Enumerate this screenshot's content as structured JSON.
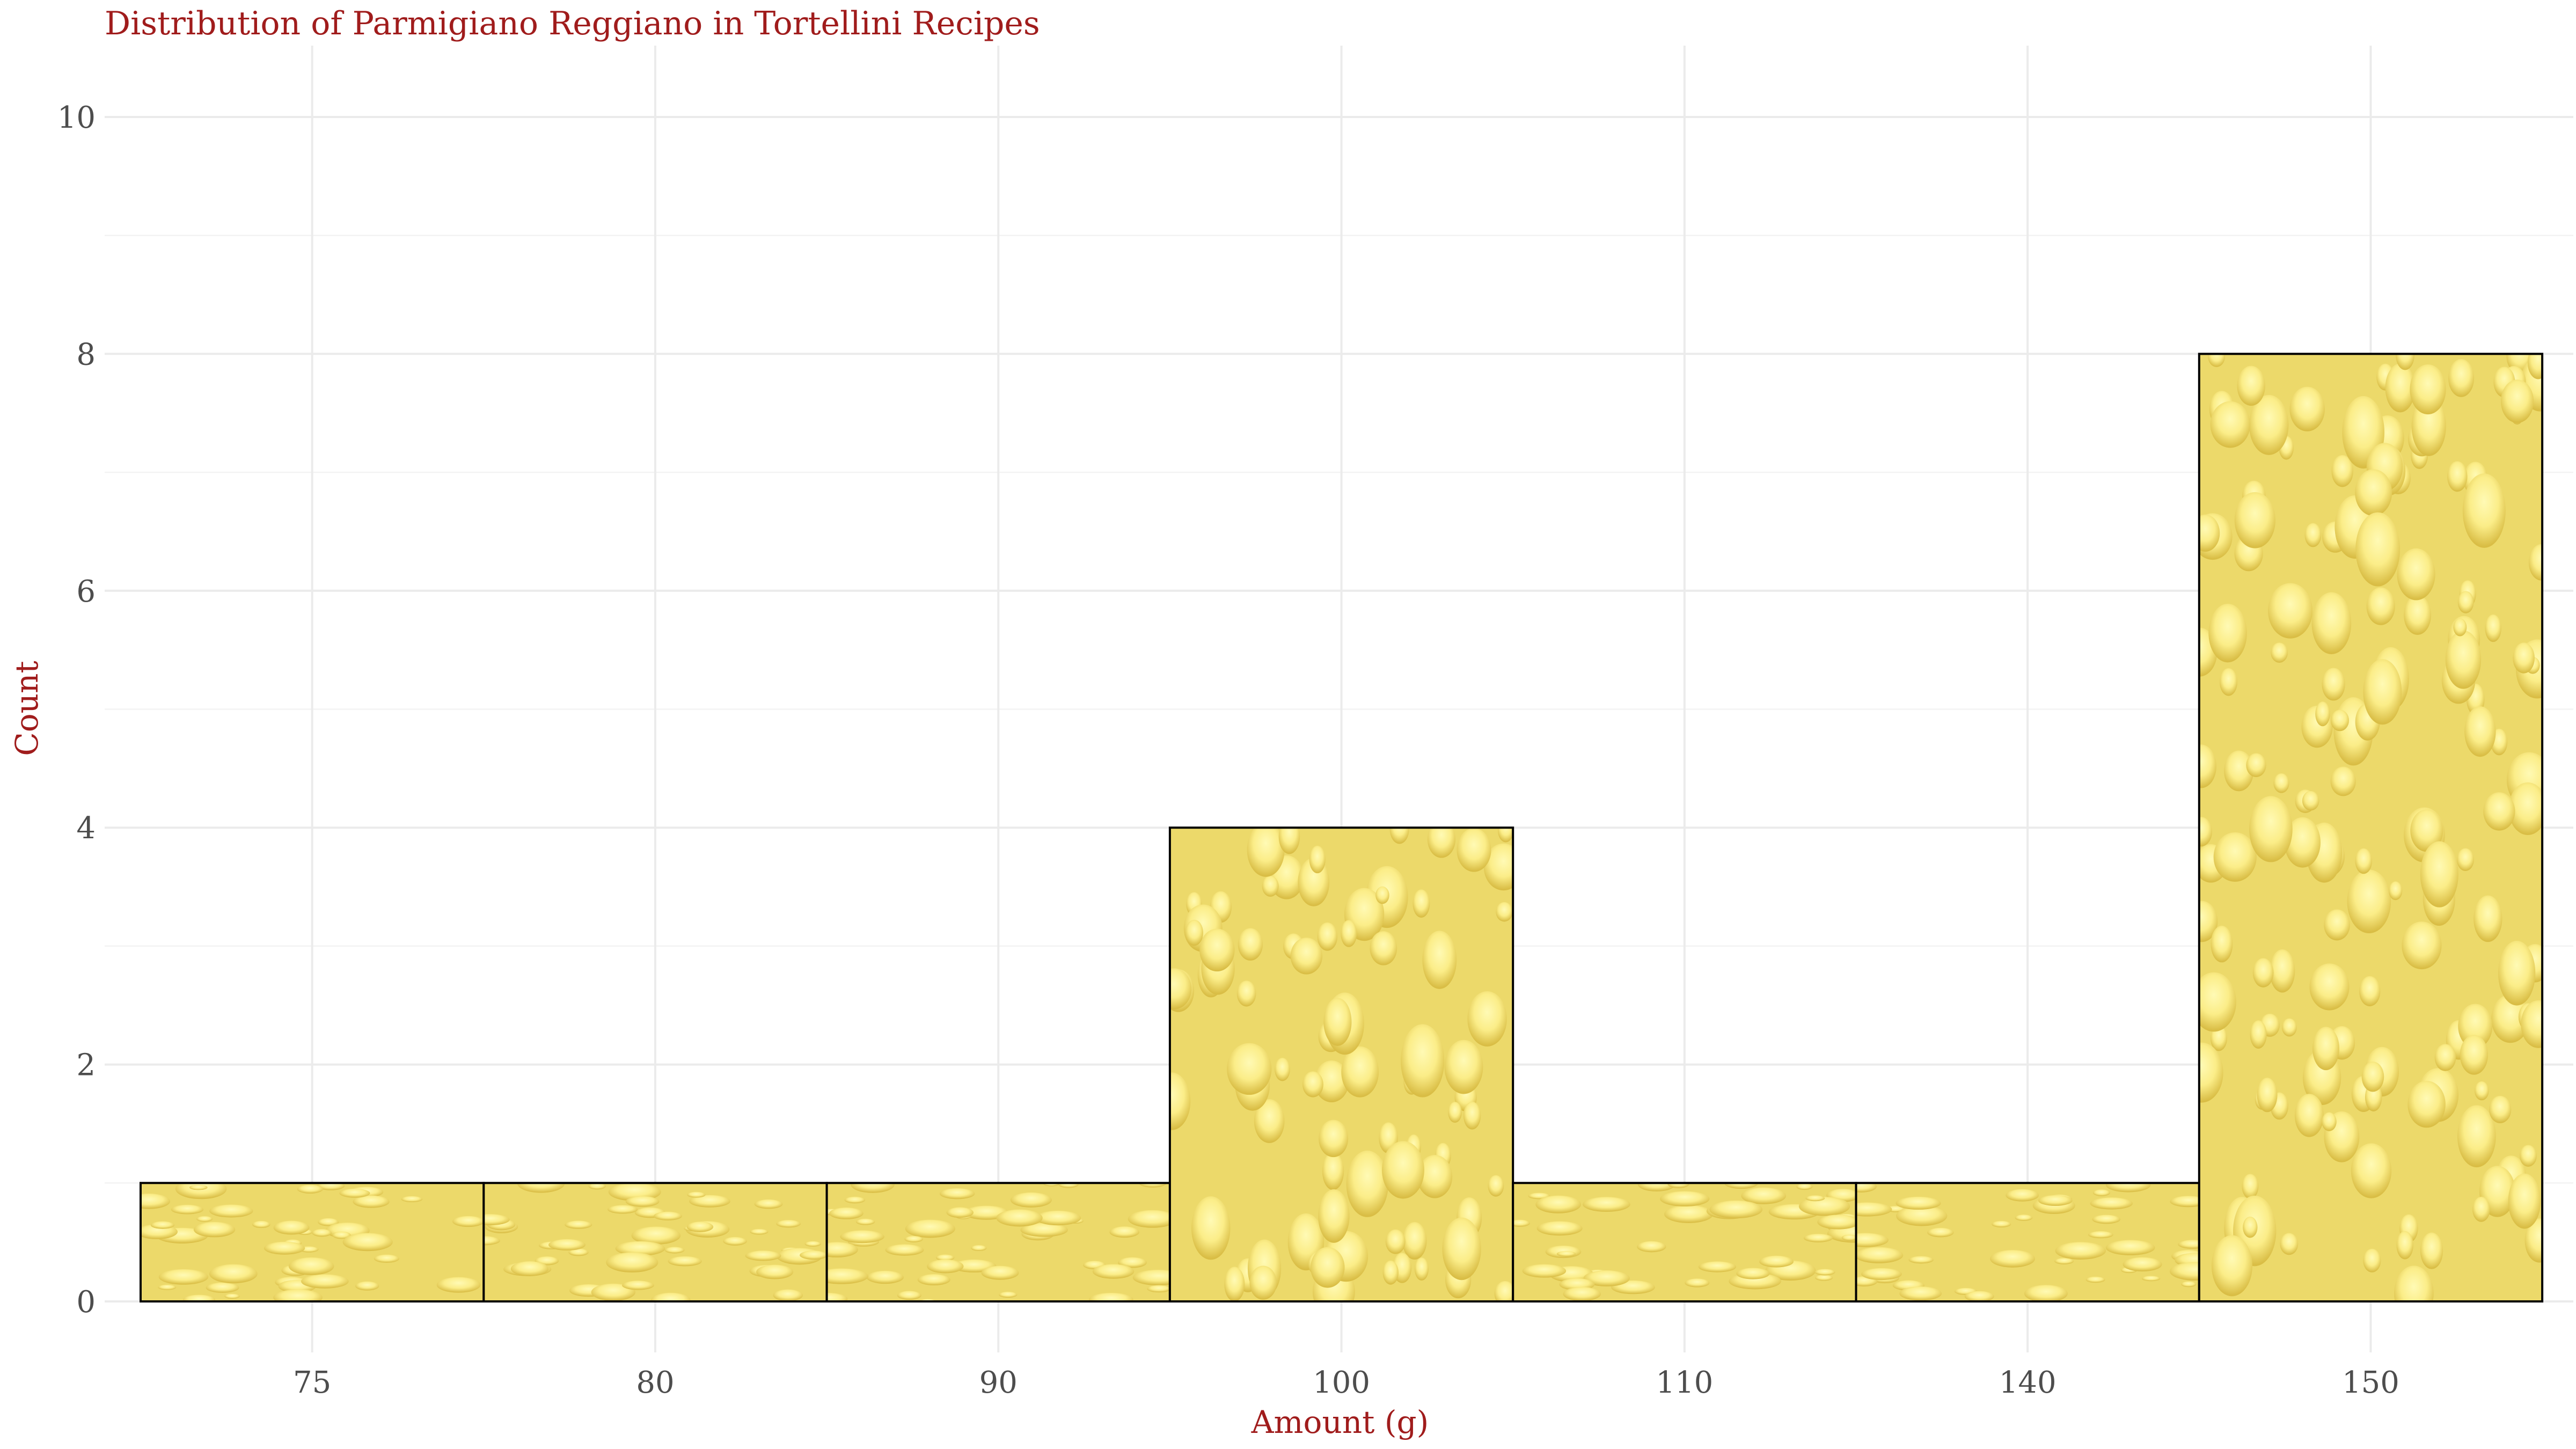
{
  "chart_data": {
    "type": "bar",
    "title": "Distribution of Parmigiano Reggiano in Tortellini Recipes",
    "xlabel": "Amount (g)",
    "ylabel": "Count",
    "categories": [
      "75",
      "80",
      "90",
      "100",
      "110",
      "140",
      "150"
    ],
    "values": [
      1,
      1,
      1,
      4,
      1,
      1,
      8
    ],
    "ylim": [
      0,
      10
    ],
    "y_ticks": [
      "0",
      "2",
      "4",
      "6",
      "8",
      "10"
    ],
    "grid": true,
    "legend": "none",
    "colors": {
      "cheese": "#ecd96a",
      "hole_light": "#fff6a0",
      "hole_dark": "#d4b83a",
      "outline": "#000000",
      "title": "#a01c1c",
      "tick": "#4d4d4d"
    }
  }
}
